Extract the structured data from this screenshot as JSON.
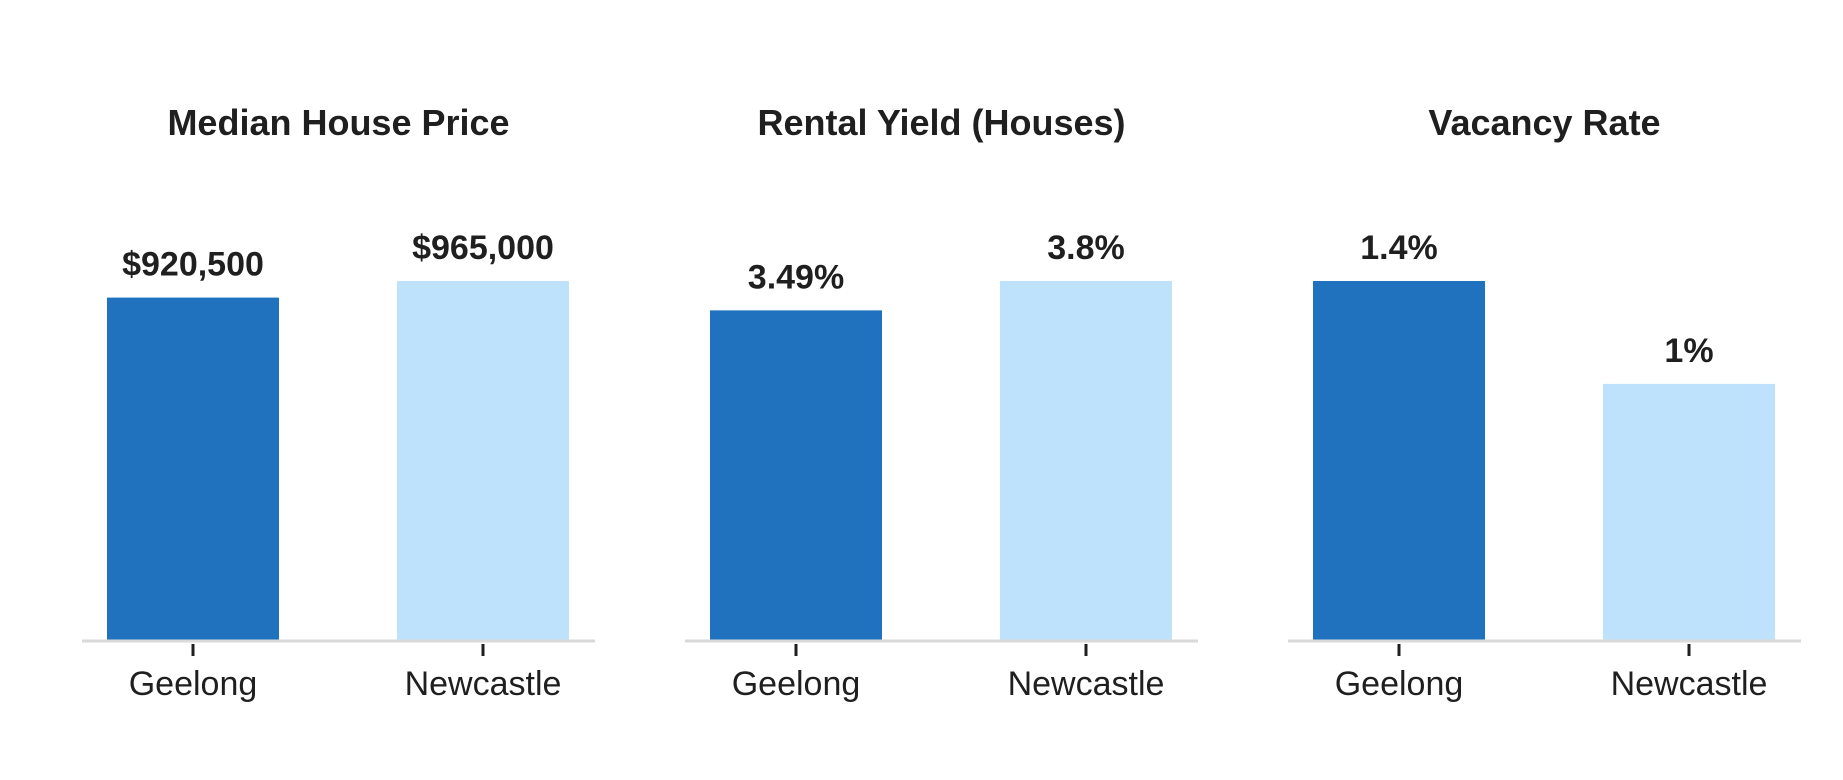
{
  "chart_data": [
    {
      "type": "bar",
      "title": "Median House Price",
      "categories": [
        "Geelong",
        "Newcastle"
      ],
      "values": [
        920500,
        965000
      ],
      "value_labels": [
        "$920,500",
        "$965,000"
      ],
      "colors": [
        "#2072be",
        "#bfe2fc"
      ],
      "ylim": [
        0,
        965000
      ],
      "xlabel": "",
      "ylabel": "",
      "grid": false
    },
    {
      "type": "bar",
      "title": "Rental Yield (Houses)",
      "categories": [
        "Geelong",
        "Newcastle"
      ],
      "values": [
        3.49,
        3.8
      ],
      "value_labels": [
        "3.49%",
        "3.8%"
      ],
      "colors": [
        "#2072be",
        "#bfe2fc"
      ],
      "ylim": [
        0,
        3.8
      ],
      "xlabel": "",
      "ylabel": "",
      "grid": false
    },
    {
      "type": "bar",
      "title": "Vacancy Rate",
      "categories": [
        "Geelong",
        "Newcastle"
      ],
      "values": [
        1.4,
        1.0
      ],
      "value_labels": [
        "1.4%",
        "1%"
      ],
      "colors": [
        "#2072be",
        "#bfe2fc"
      ],
      "ylim": [
        0,
        1.4
      ],
      "xlabel": "",
      "ylabel": "",
      "grid": false
    }
  ]
}
